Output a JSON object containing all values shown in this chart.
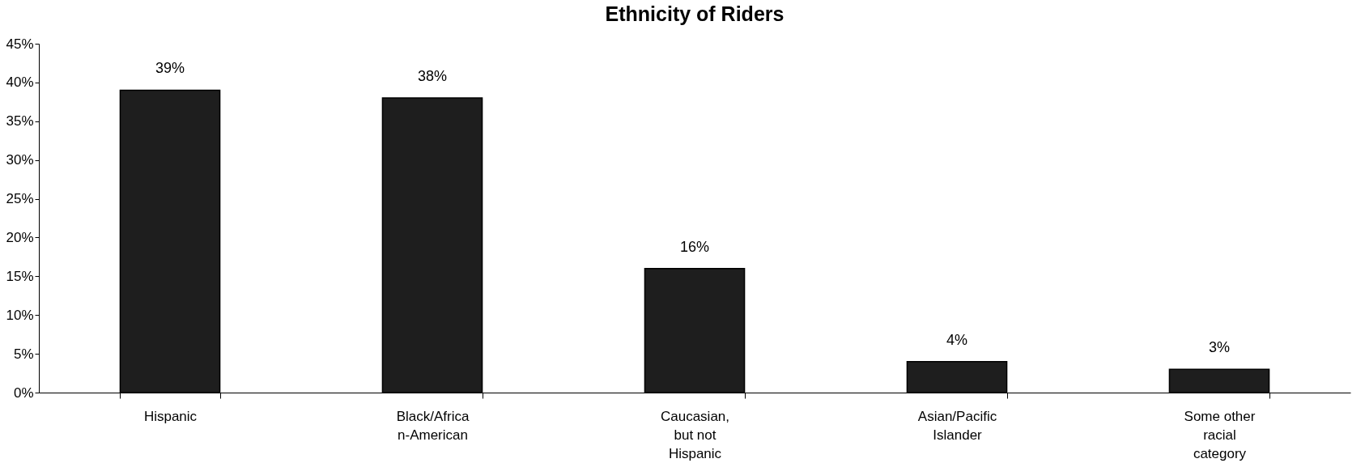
{
  "chart_data": {
    "type": "bar",
    "title": "Ethnicity of Riders",
    "categories": [
      "Hispanic",
      "Black/African-American",
      "Caucasian, but not Hispanic",
      "Asian/Pacific Islander",
      "Some other racial category"
    ],
    "values": [
      39,
      38,
      16,
      4,
      3
    ],
    "value_labels": [
      "39%",
      "38%",
      "16%",
      "4%",
      "3%"
    ],
    "color": "#1e1e1e",
    "ylim": [
      0,
      45
    ],
    "yticks": [
      {
        "value": 0,
        "label": "0%"
      },
      {
        "value": 5,
        "label": "5%"
      },
      {
        "value": 10,
        "label": "10%"
      },
      {
        "value": 15,
        "label": "15%"
      },
      {
        "value": 20,
        "label": "20%"
      },
      {
        "value": 25,
        "label": "25%"
      },
      {
        "value": 30,
        "label": "30%"
      },
      {
        "value": 35,
        "label": "35%"
      },
      {
        "value": 40,
        "label": "40%"
      },
      {
        "value": 45,
        "label": "45%"
      }
    ],
    "grid": false
  }
}
